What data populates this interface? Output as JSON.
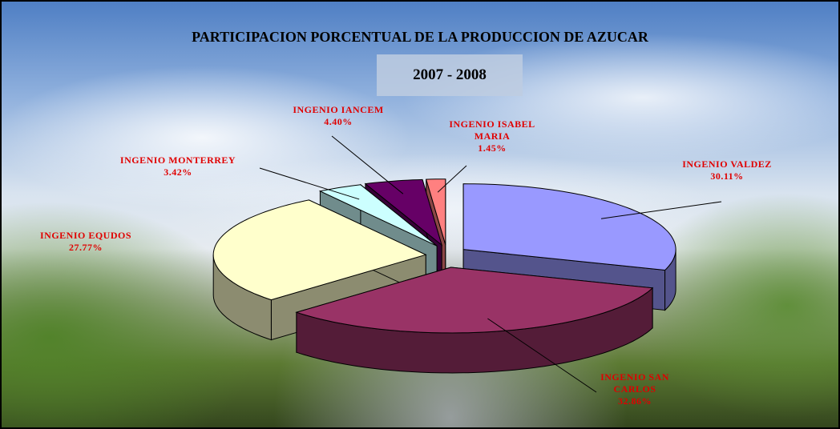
{
  "chart_data": {
    "type": "pie",
    "title": "PARTICIPACION PORCENTUAL DE LA PRODUCCION DE AZUCAR",
    "subtitle": "2007 - 2008",
    "categories": [
      "INGENIO VALDEZ",
      "INGENIO SAN CARLOS",
      "INGENIO EQUDOS",
      "INGENIO MONTERREY",
      "INGENIO IANCEM",
      "INGENIO ISABEL MARIA"
    ],
    "values": [
      30.11,
      32.86,
      27.77,
      3.42,
      4.4,
      1.45
    ],
    "value_labels": [
      "30.11%",
      "32.86%",
      "27.77%",
      "3.42%",
      "4.40%",
      "1.45%"
    ],
    "colors": [
      "#9999ff",
      "#993366",
      "#ffffcc",
      "#ccffff",
      "#660066",
      "#ff8080"
    ]
  }
}
